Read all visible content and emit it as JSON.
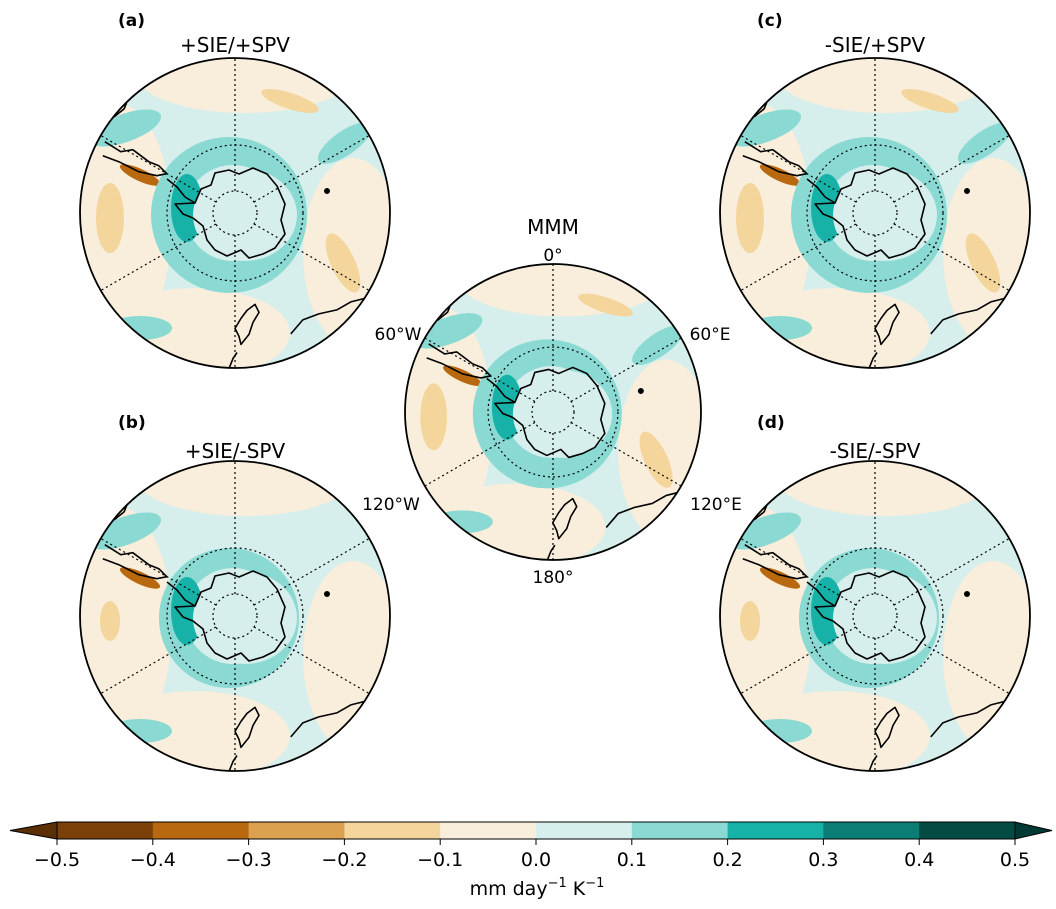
{
  "panels": [
    {
      "id": "a",
      "letter": "(a)",
      "title": "+SIE/+SPV"
    },
    {
      "id": "b",
      "letter": "(b)",
      "title": "+SIE/-SPV"
    },
    {
      "id": "center",
      "letter": "",
      "title": "MMM"
    },
    {
      "id": "c",
      "letter": "(c)",
      "title": "-SIE/+SPV"
    },
    {
      "id": "d",
      "letter": "(d)",
      "title": "-SIE/-SPV"
    }
  ],
  "center_longitude_labels": {
    "top": "0°",
    "upper_left": "60°W",
    "upper_right": "60°E",
    "lower_left": "120°W",
    "lower_right": "120°E",
    "bottom": "180°"
  },
  "colorbar": {
    "ticks": [
      "−0.5",
      "−0.4",
      "−0.3",
      "−0.2",
      "−0.1",
      "0.0",
      "0.1",
      "0.2",
      "0.3",
      "0.4",
      "0.5"
    ],
    "colors": [
      "#7a4008",
      "#b8690f",
      "#dca14f",
      "#f4d69c",
      "#f8eedb",
      "#d6eeec",
      "#8ad9d2",
      "#16b2a8",
      "#0a7d74",
      "#034b43"
    ],
    "under_color": "#5a2f06",
    "over_color": "#013a34",
    "unit_text": "mm day",
    "unit_exp1": "−1",
    "unit_k": " K",
    "unit_exp2": "−1"
  }
}
